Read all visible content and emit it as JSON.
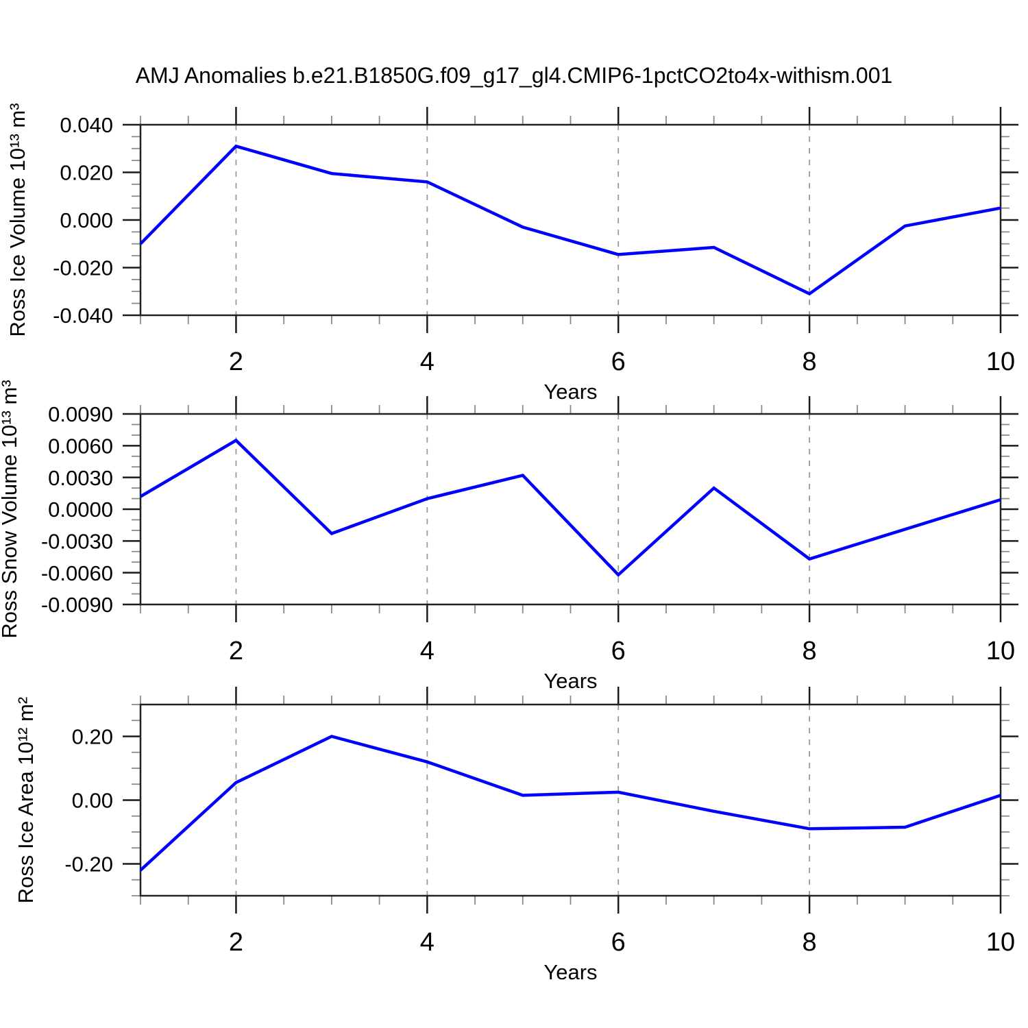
{
  "title": "AMJ Anomalies b.e21.B1850G.f09_g17_gl4.CMIP6-1pctCO2to4x-withism.001",
  "colors": {
    "line": "#0000ff",
    "frame": "#222222",
    "major_tick": "#1a1a1a",
    "minor_tick": "#8a8a8a",
    "gridline": "#999999",
    "text": "#000000",
    "background": "#ffffff"
  },
  "x_axis": {
    "label": "Years",
    "min": 1,
    "max": 10,
    "major_ticks": [
      2,
      4,
      6,
      8,
      10
    ],
    "major_tick_labels": [
      "2",
      "4",
      "6",
      "8",
      "10"
    ],
    "minor_step": 0.5,
    "gridlines": [
      2,
      4,
      6,
      8
    ]
  },
  "chart_data": [
    {
      "type": "line",
      "ylabel": "Ross Ice Volume 10¹³ m³",
      "xlabel": "Years",
      "x": [
        1,
        2,
        3,
        4,
        5,
        6,
        7,
        8,
        9,
        10
      ],
      "values": [
        -0.01,
        0.031,
        0.0195,
        0.016,
        -0.003,
        -0.0145,
        -0.0115,
        -0.031,
        -0.0025,
        0.005
      ],
      "ylim": [
        -0.04,
        0.04
      ],
      "ymajor": [
        0.04,
        0.02,
        0,
        -0.02,
        -0.04
      ],
      "ytick_labels": [
        "0.040",
        "0.020",
        "0.000",
        "-0.020",
        "-0.040"
      ],
      "yminor_step": 0.005,
      "ytick_decimals": 3,
      "grid": "x-dashed",
      "legend": "none"
    },
    {
      "type": "line",
      "ylabel": "Ross Snow Volume 10¹³ m³",
      "xlabel": "Years",
      "x": [
        1,
        2,
        3,
        4,
        5,
        6,
        7,
        8,
        9,
        10
      ],
      "values": [
        0.0012,
        0.0065,
        -0.0023,
        0.001,
        0.0032,
        -0.0062,
        0.002,
        -0.0047,
        -0.0019,
        0.0009
      ],
      "ylim": [
        -0.009,
        0.009
      ],
      "ymajor": [
        0.009,
        0.006,
        0.003,
        0,
        -0.003,
        -0.006,
        -0.009
      ],
      "ytick_labels": [
        "0.0090",
        "0.0060",
        "0.0030",
        "0.0000",
        "-0.0030",
        "-0.0060",
        "-0.0090"
      ],
      "yminor_step": 0.001,
      "ytick_decimals": 4,
      "grid": "x-dashed",
      "legend": "none"
    },
    {
      "type": "line",
      "ylabel": "Ross Ice Area 10¹² m²",
      "xlabel": "Years",
      "x": [
        1,
        2,
        3,
        4,
        5,
        6,
        7,
        8,
        9,
        10
      ],
      "values": [
        -0.22,
        0.055,
        0.2,
        0.12,
        0.015,
        0.025,
        -0.035,
        -0.09,
        -0.085,
        0.015
      ],
      "ylim": [
        -0.3,
        0.3
      ],
      "ymajor": [
        0.2,
        0,
        -0.2
      ],
      "ytick_labels": [
        "0.20",
        "0.00",
        "-0.20"
      ],
      "yminor_step": 0.05,
      "ytick_decimals": 2,
      "grid": "x-dashed",
      "legend": "none"
    }
  ]
}
